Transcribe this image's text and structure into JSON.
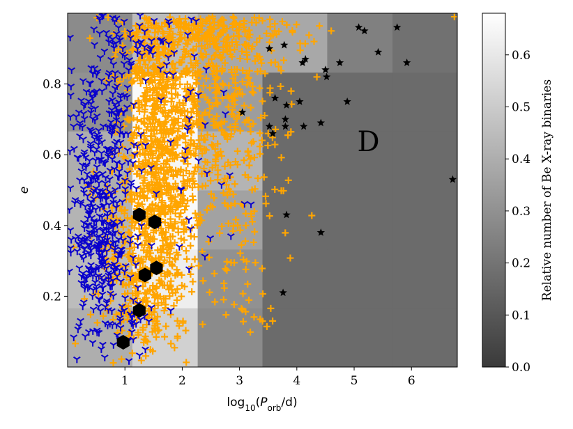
{
  "chart_data": {
    "type": "scatter",
    "xlabel_main": "log",
    "xlabel_sub": "10",
    "xlabel_paren_open": "(",
    "xlabel_var": "P",
    "xlabel_var_sub": "orb",
    "xlabel_unit": "/d)",
    "ylabel": "e",
    "xlim": [
      0.0,
      6.8
    ],
    "ylim": [
      0.0,
      1.0
    ],
    "xticks": [
      1,
      2,
      3,
      4,
      5,
      6
    ],
    "xtick_labels": [
      "1",
      "2",
      "3",
      "4",
      "5",
      "6"
    ],
    "yticks": [
      0.2,
      0.4,
      0.6,
      0.8
    ],
    "ytick_labels": [
      "0.2",
      "0.4",
      "0.6",
      "0.8"
    ],
    "region_label": "D",
    "region_label_pos": [
      5.25,
      0.61
    ],
    "colorbar": {
      "label": "Relative number of Be X-ray binaries",
      "range": [
        0.0,
        0.68
      ],
      "ticks": [
        0.0,
        0.1,
        0.2,
        0.3,
        0.4,
        0.5,
        0.6
      ],
      "tick_labels": [
        "0.0",
        "0.1",
        "0.2",
        "0.3",
        "0.4",
        "0.5",
        "0.6"
      ]
    },
    "histogram": {
      "x_edges": [
        0.0,
        1.13,
        2.27,
        3.4,
        4.53,
        5.67,
        6.8
      ],
      "y_edges": [
        0.0,
        0.167,
        0.333,
        0.5,
        0.667,
        0.833,
        1.0
      ],
      "values": [
        [
          0.4,
          0.52,
          0.28,
          0.17,
          0.17,
          0.17
        ],
        [
          0.45,
          0.62,
          0.3,
          0.17,
          0.17,
          0.17
        ],
        [
          0.42,
          0.66,
          0.36,
          0.17,
          0.17,
          0.17
        ],
        [
          0.4,
          0.65,
          0.42,
          0.17,
          0.17,
          0.17
        ],
        [
          0.3,
          0.66,
          0.34,
          0.17,
          0.17,
          0.17
        ],
        [
          0.28,
          0.45,
          0.38,
          0.38,
          0.24,
          0.19
        ]
      ]
    },
    "series": [
      {
        "name": "orange-plus",
        "marker": "plus",
        "color": "#ffa500",
        "clusters": [
          {
            "cx": 1.55,
            "cy": 0.55,
            "sx": 0.32,
            "sy": 0.3,
            "n": 650
          },
          {
            "cx": 1.85,
            "cy": 0.7,
            "sx": 0.45,
            "sy": 0.22,
            "n": 380
          },
          {
            "cx": 2.6,
            "cy": 0.8,
            "sx": 0.55,
            "sy": 0.15,
            "n": 260
          },
          {
            "cx": 1.15,
            "cy": 0.3,
            "sx": 0.4,
            "sy": 0.14,
            "n": 220
          },
          {
            "cx": 3.0,
            "cy": 0.55,
            "sx": 0.4,
            "sy": 0.22,
            "n": 110
          },
          {
            "cx": 2.2,
            "cy": 0.95,
            "sx": 0.8,
            "sy": 0.04,
            "n": 170
          },
          {
            "cx": 3.1,
            "cy": 0.25,
            "sx": 0.3,
            "sy": 0.12,
            "n": 25
          }
        ],
        "extra_points": [
          [
            4.35,
            0.82
          ],
          [
            4.3,
            0.92
          ],
          [
            4.6,
            0.95
          ],
          [
            3.9,
            0.78
          ],
          [
            3.55,
            0.86
          ],
          [
            6.75,
            0.99
          ]
        ]
      },
      {
        "name": "blue-tri",
        "marker": "tri",
        "color": "#0a00cc",
        "clusters": [
          {
            "cx": 0.55,
            "cy": 0.35,
            "sx": 0.28,
            "sy": 0.16,
            "n": 280
          },
          {
            "cx": 0.65,
            "cy": 0.7,
            "sx": 0.32,
            "sy": 0.17,
            "n": 190
          },
          {
            "cx": 1.25,
            "cy": 0.92,
            "sx": 0.45,
            "sy": 0.06,
            "n": 50
          },
          {
            "cx": 1.0,
            "cy": 0.12,
            "sx": 0.25,
            "sy": 0.05,
            "n": 35
          },
          {
            "cx": 2.2,
            "cy": 0.62,
            "sx": 0.45,
            "sy": 0.22,
            "n": 30
          }
        ],
        "extra_points": [
          [
            3.2,
            0.46
          ],
          [
            2.85,
            0.37
          ],
          [
            1.95,
            0.34
          ],
          [
            1.8,
            0.16
          ]
        ]
      },
      {
        "name": "black-star",
        "marker": "star",
        "color": "#000000",
        "points": [
          [
            3.05,
            0.72
          ],
          [
            3.52,
            0.9
          ],
          [
            3.78,
            0.91
          ],
          [
            3.52,
            0.68
          ],
          [
            3.58,
            0.66
          ],
          [
            3.62,
            0.76
          ],
          [
            3.8,
            0.68
          ],
          [
            3.8,
            0.7
          ],
          [
            3.82,
            0.74
          ],
          [
            4.05,
            0.75
          ],
          [
            4.1,
            0.86
          ],
          [
            4.15,
            0.87
          ],
          [
            4.12,
            0.68
          ],
          [
            4.42,
            0.69
          ],
          [
            4.5,
            0.84
          ],
          [
            4.52,
            0.82
          ],
          [
            4.75,
            0.86
          ],
          [
            4.88,
            0.75
          ],
          [
            5.08,
            0.96
          ],
          [
            5.18,
            0.95
          ],
          [
            5.42,
            0.89
          ],
          [
            5.75,
            0.96
          ],
          [
            5.92,
            0.86
          ],
          [
            6.72,
            0.53
          ],
          [
            3.82,
            0.43
          ],
          [
            4.42,
            0.38
          ],
          [
            3.76,
            0.21
          ]
        ]
      },
      {
        "name": "black-hexagon",
        "marker": "hexagon",
        "color": "#000000",
        "points": [
          [
            1.25,
            0.43
          ],
          [
            1.52,
            0.41
          ],
          [
            1.55,
            0.28
          ],
          [
            1.35,
            0.26
          ],
          [
            1.25,
            0.16
          ],
          [
            0.97,
            0.07
          ]
        ]
      }
    ]
  }
}
